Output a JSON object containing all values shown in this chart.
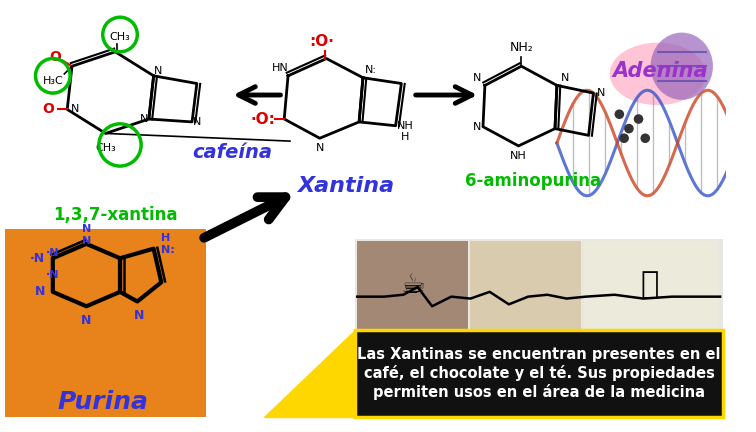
{
  "bg_color": "#ffffff",
  "orange_box_color": "#E8821A",
  "black_box_color": "#111111",
  "black_box_border": "#FFD700",
  "yellow_color": "#FFD700",
  "green_color": "#00BB00",
  "blue_color": "#3333DD",
  "purple_color": "#9933CC",
  "red_color": "#DD0000",
  "black_color": "#111111",
  "white_color": "#ffffff",
  "pink_color": "#FFB0C8",
  "purina_text": "Purina",
  "xantina_text": "Xantina",
  "cafeina_text": "cafeína",
  "xantina_sub_text": "1,3,7-xantina",
  "aminopurina_text": "6-aminopurina",
  "adenina_text": "Adenina",
  "black_text_line1": "Las Xantinas se encuentran presentes en el",
  "black_text_line2": "café, el chocolate y el té. Sus propiedades",
  "black_text_line3": "permiten usos en el área de la medicina"
}
